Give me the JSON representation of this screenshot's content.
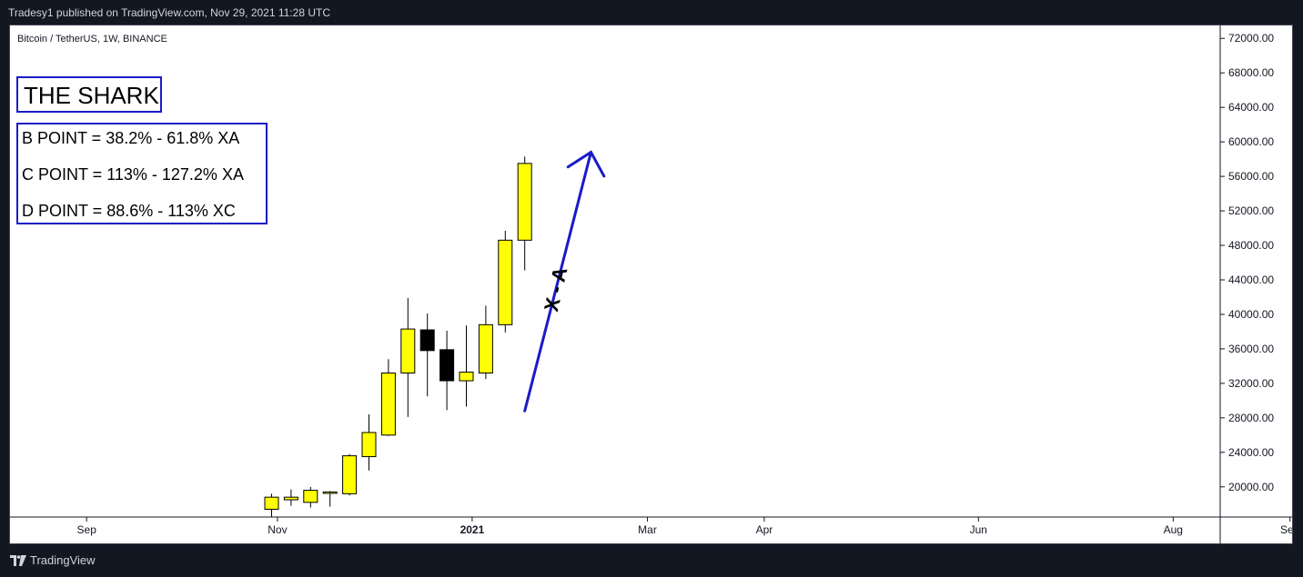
{
  "header": {
    "published_text": "Tradesy1 published on TradingView.com, Nov 29, 2021 11:28 UTC"
  },
  "footer": {
    "brand": "TradingView",
    "logo_icon": "tradingview-logo-icon"
  },
  "annotations": {
    "title_box": "THE SHARK",
    "rules": [
      "B POINT = 38.2% - 61.8% XA",
      "C POINT = 113% - 127.2% XA",
      "D POINT = 88.6% - 113% XC"
    ],
    "arrow_label": "X - A",
    "colors": {
      "box_border": "#1a1ac8",
      "arrow": "#1a1ac8",
      "bull": "#ffff00",
      "bear": "#000000"
    }
  },
  "chart_data": {
    "type": "candlestick",
    "symbol_label": "Bitcoin / TetherUS, 1W, BINANCE",
    "y_ticks": [
      "72000.00",
      "68000.00",
      "64000.00",
      "60000.00",
      "56000.00",
      "52000.00",
      "48000.00",
      "44000.00",
      "40000.00",
      "36000.00",
      "32000.00",
      "28000.00",
      "24000.00",
      "20000.00"
    ],
    "ylim": [
      16500,
      73500
    ],
    "x_ticks": [
      {
        "label": "Sep",
        "bold": false,
        "bar": -9.5
      },
      {
        "label": "Nov",
        "bold": false,
        "bar": 0.3
      },
      {
        "label": "2021",
        "bold": true,
        "bar": 10.3
      },
      {
        "label": "Mar",
        "bold": false,
        "bar": 19.3
      },
      {
        "label": "Apr",
        "bold": false,
        "bar": 25.3
      },
      {
        "label": "Jun",
        "bold": false,
        "bar": 36.3
      },
      {
        "label": "Aug",
        "bold": false,
        "bar": 46.3
      },
      {
        "label": "Sep",
        "bold": false,
        "bar": 52.3
      }
    ],
    "candles": [
      {
        "o": 17400,
        "h": 19200,
        "l": 16500,
        "c": 18800
      },
      {
        "o": 18500,
        "h": 19700,
        "l": 17800,
        "c": 18800
      },
      {
        "o": 18200,
        "h": 20000,
        "l": 17600,
        "c": 19600
      },
      {
        "o": 19300,
        "h": 19500,
        "l": 17700,
        "c": 19400
      },
      {
        "o": 19200,
        "h": 23800,
        "l": 19000,
        "c": 23600
      },
      {
        "o": 23500,
        "h": 28400,
        "l": 21900,
        "c": 26300
      },
      {
        "o": 26000,
        "h": 34800,
        "l": 25900,
        "c": 33200
      },
      {
        "o": 33200,
        "h": 41900,
        "l": 28100,
        "c": 38300
      },
      {
        "o": 38200,
        "h": 40100,
        "l": 30500,
        "c": 35800
      },
      {
        "o": 35900,
        "h": 38100,
        "l": 28900,
        "c": 32300
      },
      {
        "o": 32300,
        "h": 38700,
        "l": 29300,
        "c": 33300
      },
      {
        "o": 33200,
        "h": 41000,
        "l": 32500,
        "c": 38800
      },
      {
        "o": 38800,
        "h": 49700,
        "l": 37900,
        "c": 48600
      },
      {
        "o": 48600,
        "h": 58300,
        "l": 45100,
        "c": 57500
      }
    ],
    "arrow": {
      "from": {
        "bar": 13.0,
        "price": 28800
      },
      "to": {
        "bar": 16.4,
        "price": 58800
      }
    }
  }
}
